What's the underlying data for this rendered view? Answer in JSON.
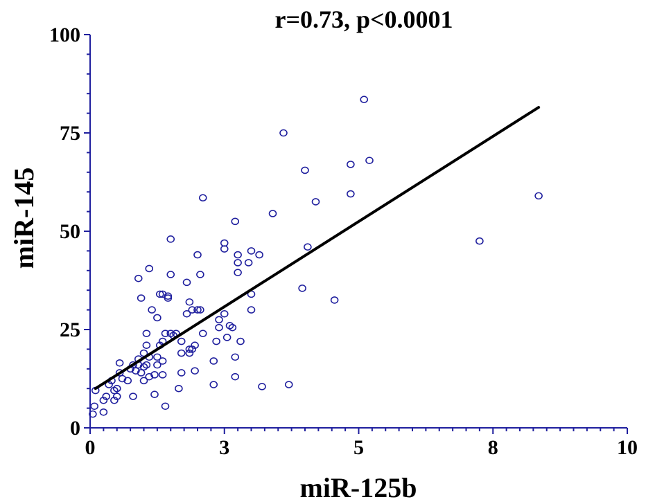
{
  "chart_data": {
    "type": "scatter",
    "title": "r=0.73, p<0.0001",
    "xlabel": "miR-125b",
    "ylabel": "miR-145",
    "xlim": [
      0,
      10
    ],
    "ylim": [
      0,
      100
    ],
    "x_ticks": [
      {
        "value": 0,
        "label": "0"
      },
      {
        "value": 2.5,
        "label": "3"
      },
      {
        "value": 5,
        "label": "5"
      },
      {
        "value": 7.5,
        "label": "8"
      },
      {
        "value": 10,
        "label": "10"
      }
    ],
    "y_ticks": [
      {
        "value": 0,
        "label": "0"
      },
      {
        "value": 25,
        "label": "25"
      },
      {
        "value": 50,
        "label": "50"
      },
      {
        "value": 75,
        "label": "75"
      },
      {
        "value": 100,
        "label": "100"
      }
    ],
    "grid": false,
    "marker_color": "#1f1f9e",
    "line_color": "#000000",
    "regression_line": {
      "x": [
        0.1,
        8.35
      ],
      "y": [
        10,
        81.5
      ]
    },
    "points": [
      {
        "x": 0.05,
        "y": 3.5
      },
      {
        "x": 0.08,
        "y": 5.5
      },
      {
        "x": 0.1,
        "y": 9.5
      },
      {
        "x": 0.25,
        "y": 4
      },
      {
        "x": 0.25,
        "y": 7
      },
      {
        "x": 0.3,
        "y": 8
      },
      {
        "x": 0.35,
        "y": 11
      },
      {
        "x": 0.4,
        "y": 12
      },
      {
        "x": 0.45,
        "y": 7
      },
      {
        "x": 0.45,
        "y": 9.5
      },
      {
        "x": 0.5,
        "y": 8
      },
      {
        "x": 0.5,
        "y": 10
      },
      {
        "x": 0.55,
        "y": 14
      },
      {
        "x": 0.55,
        "y": 16.5
      },
      {
        "x": 0.6,
        "y": 12.5
      },
      {
        "x": 0.7,
        "y": 12
      },
      {
        "x": 0.75,
        "y": 15
      },
      {
        "x": 0.8,
        "y": 8
      },
      {
        "x": 0.8,
        "y": 16
      },
      {
        "x": 0.85,
        "y": 14.5
      },
      {
        "x": 0.9,
        "y": 16
      },
      {
        "x": 0.9,
        "y": 17.5
      },
      {
        "x": 0.95,
        "y": 14
      },
      {
        "x": 0.9,
        "y": 38
      },
      {
        "x": 0.95,
        "y": 33
      },
      {
        "x": 1.0,
        "y": 12
      },
      {
        "x": 1.0,
        "y": 15.5
      },
      {
        "x": 1.0,
        "y": 19
      },
      {
        "x": 1.05,
        "y": 16
      },
      {
        "x": 1.05,
        "y": 21
      },
      {
        "x": 1.05,
        "y": 24
      },
      {
        "x": 1.1,
        "y": 13
      },
      {
        "x": 1.1,
        "y": 18
      },
      {
        "x": 1.1,
        "y": 40.5
      },
      {
        "x": 1.15,
        "y": 30
      },
      {
        "x": 1.2,
        "y": 8.5
      },
      {
        "x": 1.2,
        "y": 13.5
      },
      {
        "x": 1.25,
        "y": 16
      },
      {
        "x": 1.25,
        "y": 18
      },
      {
        "x": 1.25,
        "y": 28
      },
      {
        "x": 1.3,
        "y": 21
      },
      {
        "x": 1.3,
        "y": 34
      },
      {
        "x": 1.35,
        "y": 13.5
      },
      {
        "x": 1.35,
        "y": 17
      },
      {
        "x": 1.35,
        "y": 22
      },
      {
        "x": 1.35,
        "y": 34
      },
      {
        "x": 1.4,
        "y": 5.5
      },
      {
        "x": 1.4,
        "y": 24
      },
      {
        "x": 1.45,
        "y": 33.5
      },
      {
        "x": 1.45,
        "y": 33
      },
      {
        "x": 1.5,
        "y": 24
      },
      {
        "x": 1.5,
        "y": 48
      },
      {
        "x": 1.5,
        "y": 39
      },
      {
        "x": 1.55,
        "y": 23.5
      },
      {
        "x": 1.6,
        "y": 24
      },
      {
        "x": 1.65,
        "y": 10
      },
      {
        "x": 1.7,
        "y": 19
      },
      {
        "x": 1.7,
        "y": 22
      },
      {
        "x": 1.7,
        "y": 14
      },
      {
        "x": 1.8,
        "y": 29
      },
      {
        "x": 1.8,
        "y": 37
      },
      {
        "x": 1.85,
        "y": 19
      },
      {
        "x": 1.85,
        "y": 20
      },
      {
        "x": 1.85,
        "y": 32
      },
      {
        "x": 1.9,
        "y": 20
      },
      {
        "x": 1.9,
        "y": 30
      },
      {
        "x": 1.95,
        "y": 21
      },
      {
        "x": 1.95,
        "y": 14.5
      },
      {
        "x": 2.0,
        "y": 44
      },
      {
        "x": 2.0,
        "y": 30
      },
      {
        "x": 2.05,
        "y": 30
      },
      {
        "x": 2.05,
        "y": 39
      },
      {
        "x": 2.1,
        "y": 58.5
      },
      {
        "x": 2.1,
        "y": 24
      },
      {
        "x": 2.3,
        "y": 11
      },
      {
        "x": 2.3,
        "y": 17
      },
      {
        "x": 2.35,
        "y": 22
      },
      {
        "x": 2.4,
        "y": 25.5
      },
      {
        "x": 2.4,
        "y": 27.5
      },
      {
        "x": 2.5,
        "y": 45.5
      },
      {
        "x": 2.5,
        "y": 47
      },
      {
        "x": 2.5,
        "y": 29
      },
      {
        "x": 2.55,
        "y": 23
      },
      {
        "x": 2.6,
        "y": 26
      },
      {
        "x": 2.65,
        "y": 25.5
      },
      {
        "x": 2.7,
        "y": 13
      },
      {
        "x": 2.7,
        "y": 18
      },
      {
        "x": 2.7,
        "y": 52.5
      },
      {
        "x": 2.75,
        "y": 39.5
      },
      {
        "x": 2.75,
        "y": 42
      },
      {
        "x": 2.75,
        "y": 44
      },
      {
        "x": 2.8,
        "y": 22
      },
      {
        "x": 2.95,
        "y": 42
      },
      {
        "x": 3.0,
        "y": 45
      },
      {
        "x": 3.0,
        "y": 34
      },
      {
        "x": 3.0,
        "y": 30
      },
      {
        "x": 3.15,
        "y": 44
      },
      {
        "x": 3.2,
        "y": 10.5
      },
      {
        "x": 3.4,
        "y": 54.5
      },
      {
        "x": 3.6,
        "y": 75
      },
      {
        "x": 3.7,
        "y": 11
      },
      {
        "x": 3.95,
        "y": 35.5
      },
      {
        "x": 4.0,
        "y": 65.5
      },
      {
        "x": 4.05,
        "y": 46
      },
      {
        "x": 4.2,
        "y": 57.5
      },
      {
        "x": 4.55,
        "y": 32.5
      },
      {
        "x": 4.85,
        "y": 59.5
      },
      {
        "x": 4.85,
        "y": 67
      },
      {
        "x": 5.1,
        "y": 83.5
      },
      {
        "x": 5.2,
        "y": 68
      },
      {
        "x": 7.25,
        "y": 47.5
      },
      {
        "x": 8.35,
        "y": 59
      }
    ]
  }
}
